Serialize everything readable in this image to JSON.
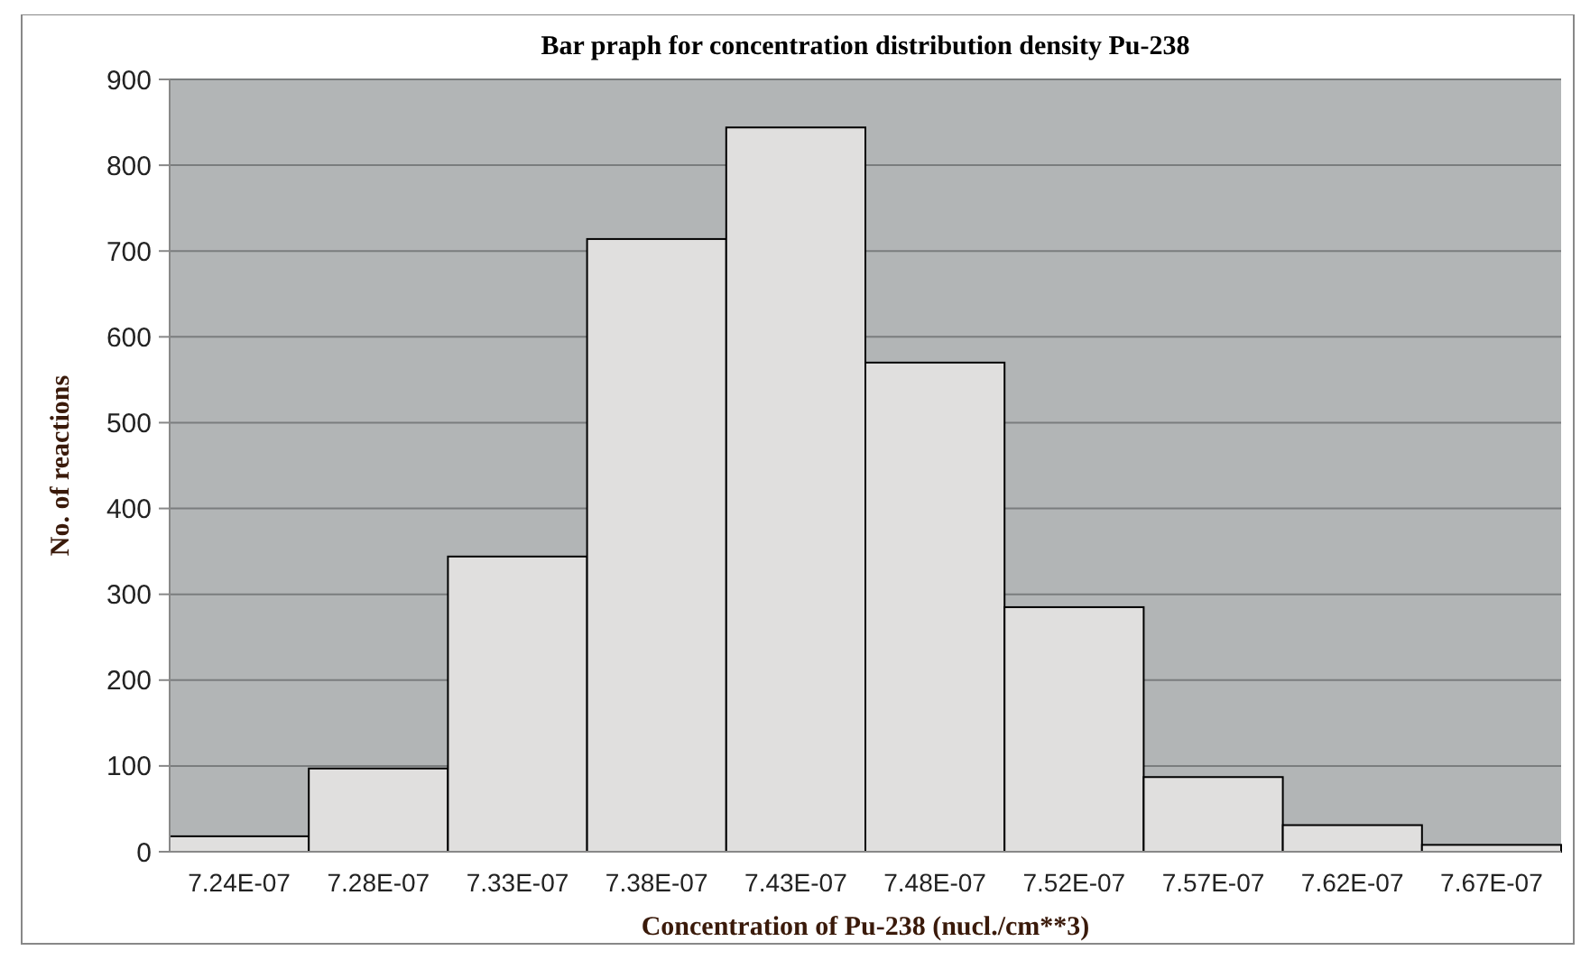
{
  "chart_data": {
    "type": "bar",
    "title": "Bar praph for concentration distribution density Pu-238",
    "xlabel": "Concentration of Pu-238 (nucl./cm**3)",
    "ylabel": "No. of reactions",
    "categories": [
      "7.24E-07",
      "7.28E-07",
      "7.33E-07",
      "7.38E-07",
      "7.43E-07",
      "7.48E-07",
      "7.52E-07",
      "7.57E-07",
      "7.62E-07",
      "7.67E-07"
    ],
    "values": [
      18,
      97,
      344,
      714,
      844,
      570,
      285,
      87,
      31,
      8
    ],
    "color": "#e0dfde",
    "ylim": [
      0,
      900
    ],
    "yticks": [
      0,
      100,
      200,
      300,
      400,
      500,
      600,
      700,
      800,
      900
    ],
    "grid": "y"
  }
}
